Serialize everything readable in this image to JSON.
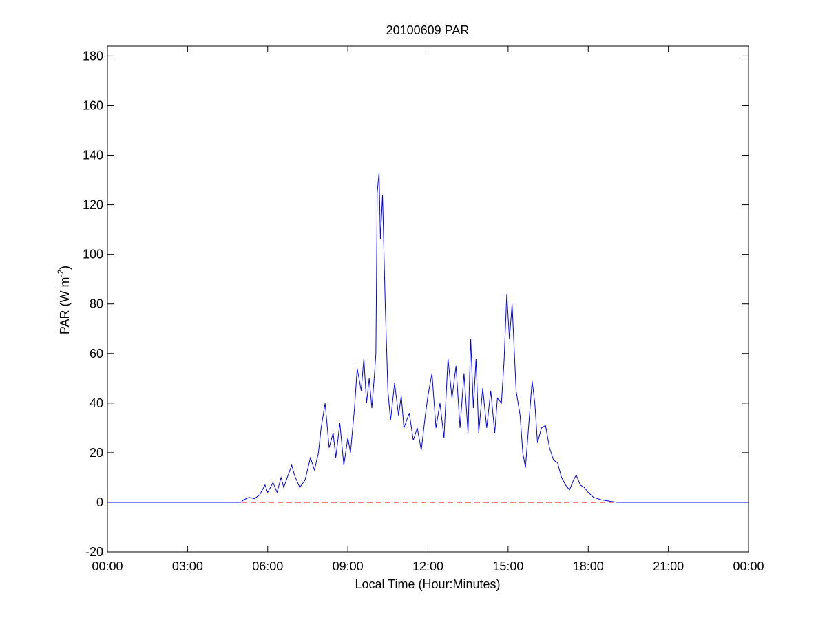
{
  "chart_data": {
    "type": "line",
    "title": "20100609 PAR",
    "x_label": "Local Time (Hour:Minutes)",
    "y_label": {
      "text": "PAR (W m",
      "superscript": "-2",
      "suffix": ")"
    },
    "x": [
      0,
      1,
      2,
      3,
      4,
      5,
      5.1,
      5.3,
      5.5,
      5.7,
      5.9,
      6.0,
      6.2,
      6.35,
      6.5,
      6.6,
      6.8,
      6.9,
      7.0,
      7.2,
      7.4,
      7.6,
      7.75,
      7.9,
      8.0,
      8.15,
      8.3,
      8.45,
      8.55,
      8.7,
      8.85,
      9.0,
      9.1,
      9.25,
      9.35,
      9.5,
      9.6,
      9.7,
      9.8,
      9.9,
      10.0,
      10.05,
      10.1,
      10.17,
      10.22,
      10.3,
      10.4,
      10.5,
      10.6,
      10.75,
      10.9,
      11.0,
      11.1,
      11.3,
      11.45,
      11.6,
      11.75,
      11.9,
      12.0,
      12.15,
      12.3,
      12.45,
      12.6,
      12.75,
      12.9,
      13.05,
      13.2,
      13.35,
      13.5,
      13.6,
      13.7,
      13.8,
      13.9,
      14.05,
      14.2,
      14.35,
      14.5,
      14.6,
      14.75,
      14.85,
      14.95,
      15.05,
      15.15,
      15.3,
      15.45,
      15.55,
      15.65,
      15.8,
      15.9,
      16.0,
      16.1,
      16.25,
      16.4,
      16.55,
      16.7,
      16.85,
      17.0,
      17.15,
      17.3,
      17.45,
      17.55,
      17.7,
      17.85,
      18.0,
      18.2,
      18.5,
      18.9,
      19.1,
      20,
      21,
      22,
      23,
      24
    ],
    "series": [
      {
        "name": "PAR",
        "color": "#0000ff",
        "values": [
          0,
          0,
          0,
          0,
          0,
          0,
          1,
          2,
          1.5,
          3,
          7,
          4,
          8,
          4,
          10,
          6,
          12,
          15,
          11,
          6,
          9,
          18,
          13,
          20,
          30,
          40,
          22,
          28,
          18,
          32,
          15,
          26,
          20,
          38,
          54,
          45,
          58,
          40,
          50,
          38,
          52,
          60,
          125,
          133,
          106,
          124,
          80,
          45,
          33,
          48,
          35,
          43,
          30,
          36,
          25,
          30,
          21,
          35,
          43,
          52,
          30,
          40,
          26,
          58,
          42,
          55,
          30,
          52,
          28,
          66,
          38,
          58,
          28,
          46,
          30,
          45,
          28,
          42,
          40,
          57,
          84,
          66,
          80,
          45,
          35,
          20,
          14,
          35,
          49,
          40,
          24,
          30,
          31,
          22,
          17,
          16,
          10,
          7,
          5,
          9,
          11,
          7,
          6,
          4,
          2,
          1,
          0.3,
          0,
          0,
          0,
          0,
          0,
          0
        ]
      }
    ],
    "reference_line": {
      "y": 0,
      "color": "#ff0000",
      "style": "dashed"
    },
    "xlim": [
      0,
      24
    ],
    "xticks": [
      {
        "value": 0,
        "label": "00:00"
      },
      {
        "value": 3,
        "label": "03:00"
      },
      {
        "value": 6,
        "label": "06:00"
      },
      {
        "value": 9,
        "label": "09:00"
      },
      {
        "value": 12,
        "label": "12:00"
      },
      {
        "value": 15,
        "label": "15:00"
      },
      {
        "value": 18,
        "label": "18:00"
      },
      {
        "value": 21,
        "label": "21:00"
      },
      {
        "value": 24,
        "label": "00:00"
      }
    ],
    "ylim": [
      -20,
      184
    ],
    "yticks": [
      -20,
      0,
      20,
      40,
      60,
      80,
      100,
      120,
      140,
      160,
      180
    ],
    "grid": false
  }
}
